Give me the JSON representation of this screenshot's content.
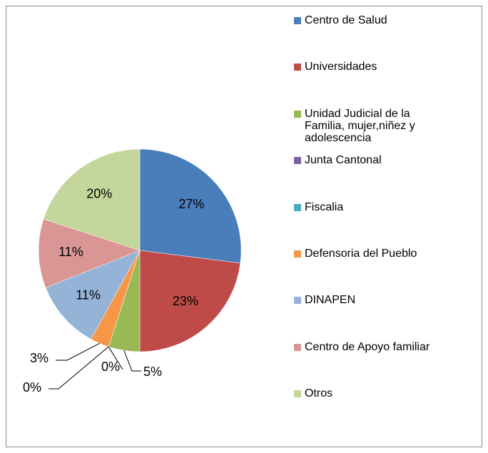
{
  "chart_data": {
    "type": "pie",
    "categories": [
      "Centro de Salud",
      "Universidades",
      "Unidad Judicial de la Familia, mujer,niñez y adolescencia",
      "Junta Cantonal",
      "Fiscalia",
      "Defensoria del Pueblo",
      "DINAPEN",
      "Centro de Apoyo familiar",
      "Otros"
    ],
    "values": [
      27,
      23,
      5,
      0,
      0,
      3,
      11,
      11,
      20
    ],
    "value_labels": [
      "27%",
      "23%",
      "5%",
      "0%",
      "0%",
      "3%",
      "11%",
      "11%",
      "20%"
    ],
    "colors": [
      "#4a7ebb",
      "#be4b48",
      "#98b954",
      "#7d60a0",
      "#46aac5",
      "#f79646",
      "#95b3d7",
      "#d99694",
      "#c3d69b"
    ],
    "legend": "right"
  }
}
